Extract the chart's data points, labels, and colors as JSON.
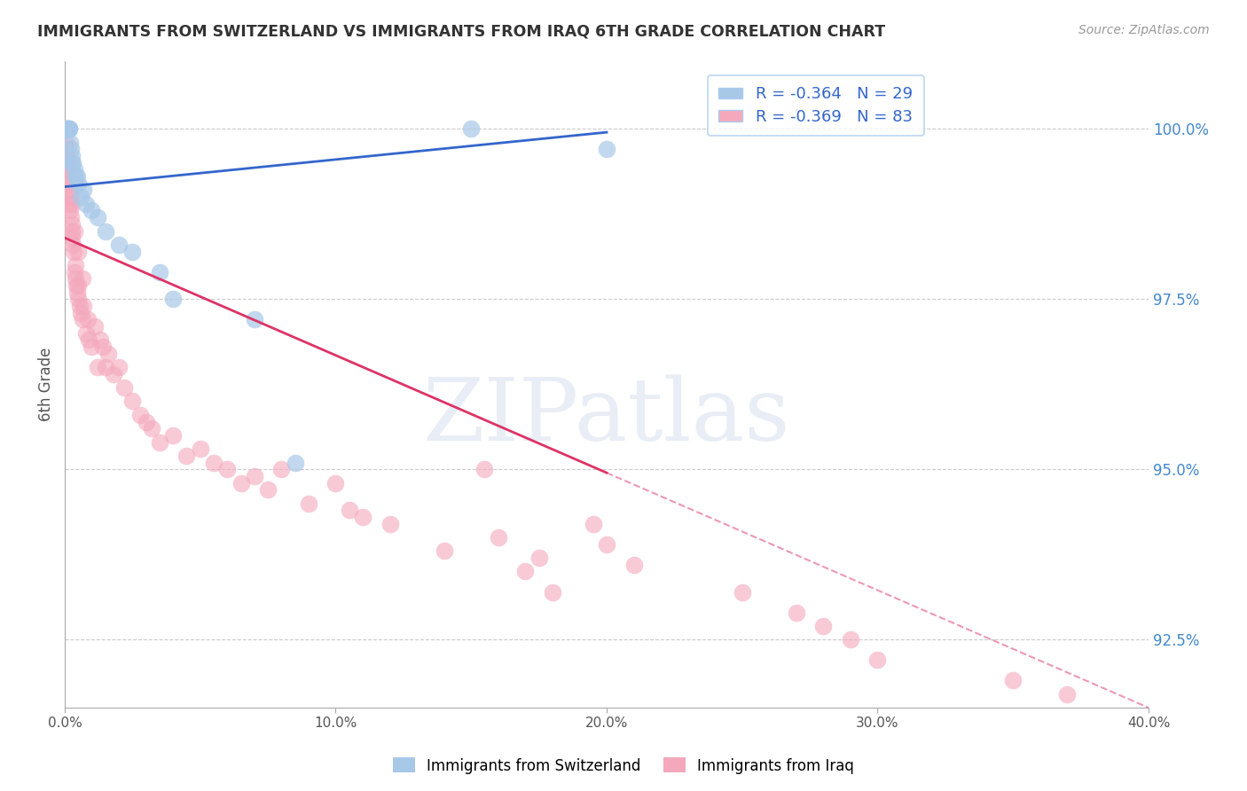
{
  "title": "IMMIGRANTS FROM SWITZERLAND VS IMMIGRANTS FROM IRAQ 6TH GRADE CORRELATION CHART",
  "source": "Source: ZipAtlas.com",
  "ylabel": "6th Grade",
  "xlim": [
    0.0,
    40.0
  ],
  "ylim": [
    91.5,
    101.0
  ],
  "yticks": [
    92.5,
    95.0,
    97.5,
    100.0
  ],
  "ytick_labels": [
    "92.5%",
    "95.0%",
    "97.5%",
    "100.0%"
  ],
  "xticks": [
    0.0,
    10.0,
    20.0,
    30.0,
    40.0
  ],
  "xtick_labels": [
    "0.0%",
    "10.0%",
    "20.0%",
    "30.0%",
    "40.0%"
  ],
  "switzerland_R": -0.364,
  "switzerland_N": 29,
  "iraq_R": -0.369,
  "iraq_N": 83,
  "switzerland_color": "#a8c8e8",
  "iraq_color": "#f4a8bc",
  "switzerland_line_color": "#3366cc",
  "iraq_line_color": "#dd3366",
  "watermark": "ZIPatlas",
  "background_color": "#ffffff",
  "grid_color": "#cccccc",
  "title_color": "#333333",
  "right_axis_color": "#4488cc",
  "switzerland_x": [
    0.05,
    0.08,
    0.1,
    0.12,
    0.15,
    0.18,
    0.2,
    0.22,
    0.25,
    0.28,
    0.3,
    0.35,
    0.4,
    0.45,
    0.5,
    0.6,
    0.7,
    0.8,
    1.0,
    1.2,
    1.5,
    2.0,
    2.5,
    3.5,
    4.0,
    7.0,
    8.5,
    15.0,
    20.0
  ],
  "switzerland_y": [
    100.0,
    100.0,
    100.0,
    100.0,
    100.0,
    100.0,
    99.8,
    99.7,
    99.6,
    99.5,
    99.5,
    99.4,
    99.3,
    99.3,
    99.2,
    99.0,
    99.1,
    98.9,
    98.8,
    98.7,
    98.5,
    98.3,
    98.2,
    97.9,
    97.5,
    97.2,
    95.1,
    100.0,
    99.7
  ],
  "iraq_x": [
    0.05,
    0.07,
    0.08,
    0.1,
    0.12,
    0.13,
    0.15,
    0.17,
    0.18,
    0.2,
    0.22,
    0.23,
    0.25,
    0.27,
    0.28,
    0.3,
    0.32,
    0.35,
    0.38,
    0.4,
    0.42,
    0.45,
    0.48,
    0.5,
    0.55,
    0.6,
    0.65,
    0.7,
    0.8,
    0.9,
    1.0,
    1.1,
    1.2,
    1.4,
    1.5,
    1.6,
    1.8,
    2.0,
    2.2,
    2.5,
    2.8,
    3.0,
    3.2,
    3.5,
    4.0,
    4.5,
    5.0,
    5.5,
    6.0,
    6.5,
    7.0,
    7.5,
    8.0,
    9.0,
    10.0,
    10.5,
    11.0,
    12.0,
    14.0,
    15.5,
    16.0,
    17.0,
    17.5,
    18.0,
    19.5,
    20.0,
    21.0,
    25.0,
    27.0,
    28.0,
    29.0,
    30.0,
    35.0,
    37.0,
    0.06,
    0.09,
    0.14,
    0.25,
    0.35,
    0.5,
    0.65,
    0.85,
    1.3
  ],
  "iraq_y": [
    99.8,
    99.6,
    99.5,
    99.3,
    99.2,
    99.4,
    99.1,
    99.0,
    98.9,
    98.8,
    98.7,
    99.0,
    98.6,
    98.5,
    98.4,
    98.3,
    98.2,
    97.9,
    97.8,
    98.0,
    97.7,
    97.6,
    97.5,
    97.7,
    97.4,
    97.3,
    97.2,
    97.4,
    97.0,
    96.9,
    96.8,
    97.1,
    96.5,
    96.8,
    96.5,
    96.7,
    96.4,
    96.5,
    96.2,
    96.0,
    95.8,
    95.7,
    95.6,
    95.4,
    95.5,
    95.2,
    95.3,
    95.1,
    95.0,
    94.8,
    94.9,
    94.7,
    95.0,
    94.5,
    94.8,
    94.4,
    94.3,
    94.2,
    93.8,
    95.0,
    94.0,
    93.5,
    93.7,
    93.2,
    94.2,
    93.9,
    93.6,
    93.2,
    92.9,
    92.7,
    92.5,
    92.2,
    91.9,
    91.7,
    99.7,
    99.5,
    99.3,
    98.9,
    98.5,
    98.2,
    97.8,
    97.2,
    96.9
  ]
}
